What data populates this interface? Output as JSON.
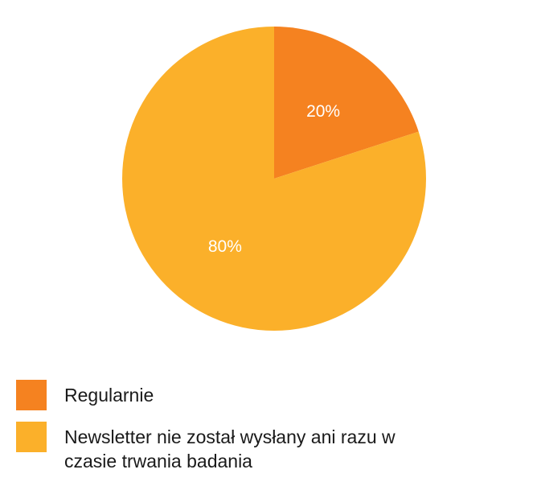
{
  "chart_data": {
    "type": "pie",
    "title": "",
    "slices": [
      {
        "label": "Regularnie",
        "value": 20,
        "display": "20%",
        "color": "#F58220"
      },
      {
        "label": "Newsletter nie został wysłany ani razu w czasie trwania badania",
        "value": 80,
        "display": "80%",
        "color": "#FBB02A"
      }
    ],
    "legend_position": "bottom-left"
  }
}
